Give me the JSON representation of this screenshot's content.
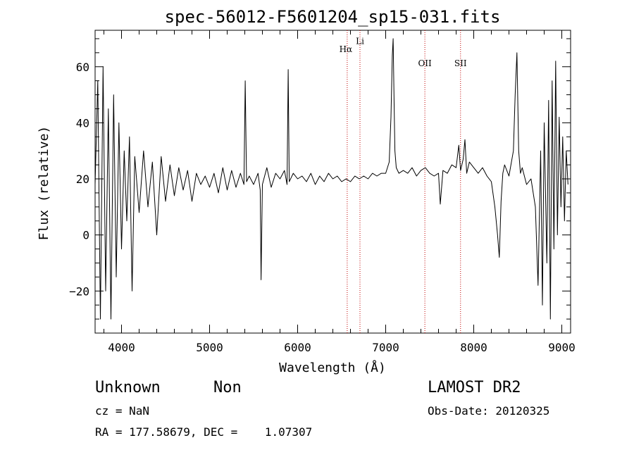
{
  "chart_data": {
    "type": "line",
    "title": "spec-56012-F5601204_sp15-031.fits",
    "xlabel": "Wavelength (Å)",
    "ylabel": "Flux (relative)",
    "xlim": [
      3700,
      9100
    ],
    "ylim": [
      -35,
      73
    ],
    "x_ticks": [
      4000,
      5000,
      6000,
      7000,
      8000,
      9000
    ],
    "y_ticks": [
      -20,
      0,
      20,
      40,
      60
    ],
    "grid": false,
    "series": [
      {
        "x": [
          3700,
          3730,
          3760,
          3790,
          3820,
          3850,
          3880,
          3910,
          3940,
          3970,
          4000,
          4030,
          4060,
          4090,
          4120,
          4150,
          4200,
          4250,
          4300,
          4350,
          4400,
          4450,
          4500,
          4550,
          4600,
          4650,
          4700,
          4750,
          4800,
          4850,
          4900,
          4950,
          5000,
          5050,
          5100,
          5150,
          5200,
          5250,
          5300,
          5350,
          5390,
          5405,
          5420,
          5450,
          5500,
          5550,
          5575,
          5585,
          5600,
          5650,
          5700,
          5750,
          5800,
          5850,
          5880,
          5893,
          5905,
          5950,
          6000,
          6050,
          6100,
          6150,
          6200,
          6250,
          6300,
          6350,
          6400,
          6450,
          6500,
          6550,
          6600,
          6650,
          6700,
          6750,
          6800,
          6850,
          6900,
          6950,
          7000,
          7040,
          7060,
          7075,
          7085,
          7095,
          7105,
          7120,
          7150,
          7200,
          7250,
          7300,
          7350,
          7400,
          7450,
          7500,
          7550,
          7600,
          7620,
          7650,
          7700,
          7750,
          7800,
          7830,
          7850,
          7880,
          7900,
          7920,
          7950,
          8000,
          8050,
          8100,
          8150,
          8200,
          8240,
          8270,
          8290,
          8310,
          8330,
          8350,
          8400,
          8450,
          8470,
          8490,
          8510,
          8530,
          8550,
          8600,
          8650,
          8700,
          8730,
          8760,
          8780,
          8800,
          8830,
          8850,
          8870,
          8890,
          8910,
          8930,
          8950,
          8970,
          8990,
          9010,
          9030,
          9050,
          9070
        ],
        "y": [
          18,
          55,
          -30,
          60,
          -20,
          45,
          -30,
          50,
          -15,
          40,
          -5,
          30,
          5,
          35,
          -20,
          28,
          8,
          30,
          10,
          26,
          0,
          28,
          12,
          25,
          14,
          24,
          16,
          23,
          12,
          22,
          18,
          21,
          17,
          22,
          15,
          24,
          16,
          23,
          17,
          22,
          18,
          55,
          19,
          21,
          18,
          22,
          16,
          -16,
          18,
          24,
          17,
          22,
          20,
          23,
          18,
          59,
          19,
          22,
          20,
          21,
          19,
          22,
          18,
          21,
          19,
          22,
          20,
          21,
          19,
          20,
          19,
          21,
          20,
          21,
          20,
          22,
          21,
          22,
          22,
          26,
          42,
          64,
          70,
          48,
          30,
          24,
          22,
          23,
          22,
          24,
          21,
          23,
          24,
          22,
          21,
          22,
          11,
          23,
          22,
          25,
          24,
          32,
          23,
          27,
          34,
          22,
          26,
          24,
          22,
          24,
          21,
          19,
          10,
          0,
          -8,
          12,
          22,
          25,
          21,
          30,
          50,
          65,
          30,
          22,
          24,
          18,
          20,
          10,
          -18,
          30,
          -25,
          40,
          -10,
          48,
          -30,
          55,
          -5,
          62,
          0,
          42,
          10,
          35,
          5,
          30,
          18
        ]
      }
    ],
    "annotations": [
      {
        "label": "Hα",
        "x": 6563
      },
      {
        "label": "Li",
        "x": 6708
      },
      {
        "label": "OII",
        "x": 7445
      },
      {
        "label": "SII",
        "x": 7850
      }
    ],
    "annotation_color": "#c00000"
  },
  "footer": {
    "object_class": "Unknown",
    "object_subclass": "Non",
    "survey": "LAMOST DR2",
    "cz": "cz = NaN",
    "obs_date": "Obs-Date: 20120325",
    "coords": "RA = 177.58679, DEC =    1.07307"
  }
}
